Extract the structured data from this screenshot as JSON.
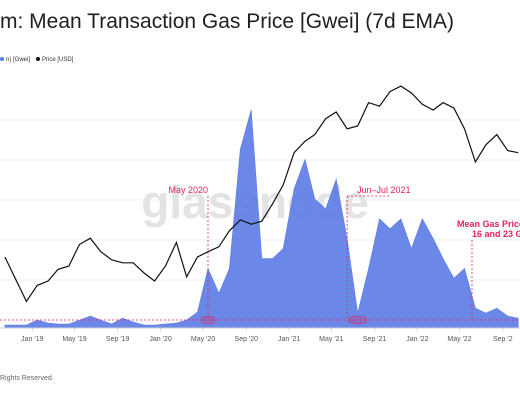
{
  "header": {
    "title": "m: Mean Transaction Gas Price [Gwei] (7d EMA)"
  },
  "legend": {
    "items": [
      {
        "label": "n) [Gwei]",
        "color": "#5b7be6"
      },
      {
        "label": "Price [USD]",
        "color": "#111111"
      }
    ]
  },
  "watermark": "glassnode",
  "footer": {
    "text": "Rights Reserved."
  },
  "annotations": [
    {
      "label": "May 2020"
    },
    {
      "label": "Jun–Jul 2021"
    },
    {
      "label": "Mean Gas Price"
    },
    {
      "label": "16 and 23 G"
    }
  ],
  "chart_data": {
    "type": "area",
    "xlabel": "",
    "ylabel": "",
    "x_ticks": [
      "Jan '19",
      "May '19",
      "Sep '19",
      "Jan '20",
      "May '20",
      "Sep '20",
      "Jan '21",
      "May '21",
      "Sep '21",
      "Jan '22",
      "May '22",
      "Sep '2"
    ],
    "colors": {
      "gas": "#5b7be6",
      "price": "#111111",
      "annotation": "#e0245e"
    },
    "series": [
      {
        "name": "n) [Gwei]",
        "x": [
          "2018-10",
          "2018-12",
          "2019-01",
          "2019-02",
          "2019-03",
          "2019-04",
          "2019-05",
          "2019-06",
          "2019-07",
          "2019-08",
          "2019-09",
          "2019-10",
          "2019-11",
          "2019-12",
          "2020-01",
          "2020-02",
          "2020-03",
          "2020-04",
          "2020-05",
          "2020-06",
          "2020-07",
          "2020-08",
          "2020-09",
          "2020-10",
          "2020-11",
          "2020-12",
          "2021-01",
          "2021-02",
          "2021-03",
          "2021-04",
          "2021-05",
          "2021-06",
          "2021-07",
          "2021-08",
          "2021-09",
          "2021-10",
          "2021-11",
          "2021-12",
          "2022-01",
          "2022-02",
          "2022-03",
          "2022-04",
          "2022-05",
          "2022-06",
          "2022-07",
          "2022-08",
          "2022-09",
          "2022-10"
        ],
        "values": [
          3,
          3,
          8,
          5,
          4,
          4,
          8,
          12,
          8,
          4,
          10,
          6,
          3,
          3,
          4,
          5,
          8,
          16,
          60,
          35,
          60,
          180,
          220,
          70,
          70,
          80,
          140,
          170,
          130,
          120,
          150,
          90,
          15,
          60,
          110,
          100,
          110,
          80,
          110,
          90,
          70,
          50,
          60,
          20,
          15,
          20,
          12,
          10
        ]
      },
      {
        "name": "Price [USD]",
        "x": [
          "2018-10",
          "2018-12",
          "2019-01",
          "2019-02",
          "2019-03",
          "2019-04",
          "2019-05",
          "2019-06",
          "2019-07",
          "2019-08",
          "2019-09",
          "2019-10",
          "2019-11",
          "2019-12",
          "2020-01",
          "2020-02",
          "2020-03",
          "2020-04",
          "2020-05",
          "2020-06",
          "2020-07",
          "2020-08",
          "2020-09",
          "2020-10",
          "2020-11",
          "2020-12",
          "2021-01",
          "2021-02",
          "2021-03",
          "2021-04",
          "2021-05",
          "2021-06",
          "2021-07",
          "2021-08",
          "2021-09",
          "2021-10",
          "2021-11",
          "2021-12",
          "2022-01",
          "2022-02",
          "2022-03",
          "2022-04",
          "2022-05",
          "2022-06",
          "2022-07",
          "2022-08",
          "2022-09",
          "2022-10"
        ],
        "values": [
          200,
          90,
          120,
          130,
          160,
          170,
          250,
          280,
          220,
          190,
          180,
          180,
          150,
          130,
          170,
          260,
          140,
          200,
          220,
          240,
          320,
          390,
          360,
          380,
          520,
          730,
          1300,
          1600,
          1800,
          2400,
          2700,
          2000,
          2100,
          3200,
          3000,
          3900,
          4300,
          3800,
          3100,
          2800,
          3200,
          2900,
          2000,
          1100,
          1500,
          1800,
          1350,
          1300
        ]
      }
    ],
    "events": [
      "May 2020",
      "Jun–Jul 2021"
    ],
    "grid": true,
    "legend_position": "top-left"
  }
}
